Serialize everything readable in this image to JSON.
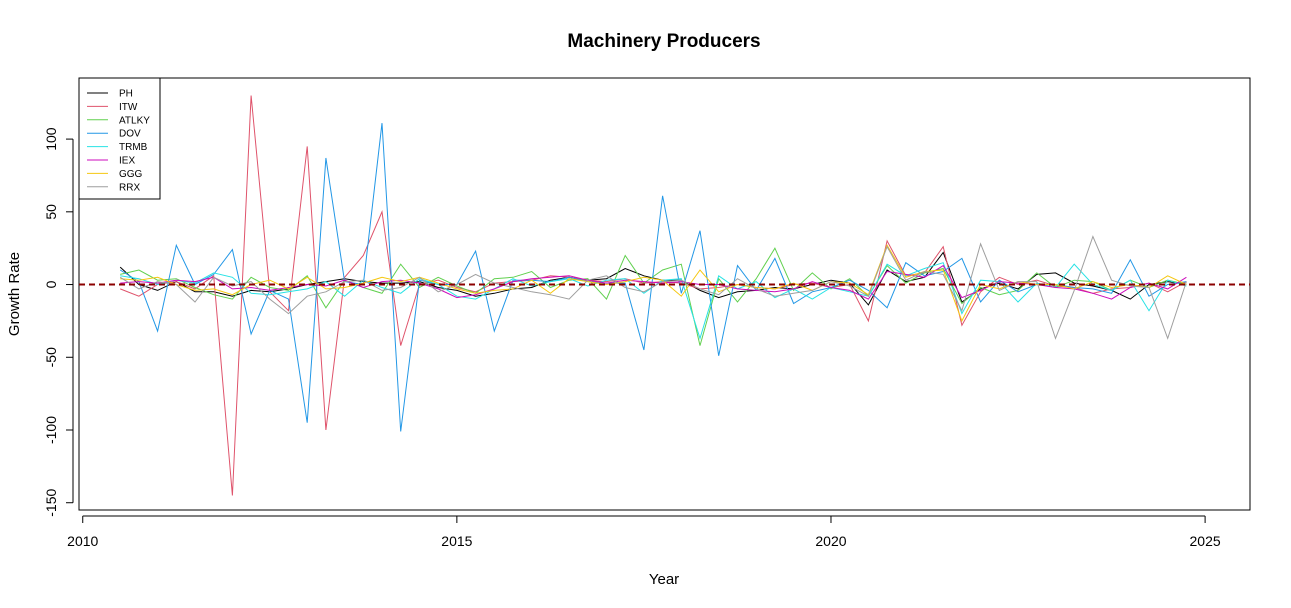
{
  "chart_data": {
    "type": "line",
    "title": "Machinery Producers",
    "xlabel": "Year",
    "ylabel": "Growth Rate",
    "xlim": [
      2009.95,
      2025.6
    ],
    "ylim": [
      -155,
      142
    ],
    "xticks": [
      2010,
      2015,
      2020,
      2025
    ],
    "yticks": [
      -150,
      -100,
      -50,
      0,
      50,
      100
    ],
    "legend_position": "top-left",
    "reference_line": {
      "y": 0,
      "style": "dashed",
      "color": "#8B0000"
    },
    "x": [
      2010.5,
      2010.75,
      2011,
      2011.25,
      2011.5,
      2011.75,
      2012,
      2012.25,
      2012.5,
      2012.75,
      2013,
      2013.25,
      2013.5,
      2013.75,
      2014,
      2014.25,
      2014.5,
      2014.75,
      2015,
      2015.25,
      2015.5,
      2015.75,
      2016,
      2016.25,
      2016.5,
      2016.75,
      2017,
      2017.25,
      2017.5,
      2017.75,
      2018,
      2018.25,
      2018.5,
      2018.75,
      2019,
      2019.25,
      2019.5,
      2019.75,
      2020,
      2020.25,
      2020.5,
      2020.75,
      2021,
      2021.25,
      2021.5,
      2021.75,
      2022,
      2022.25,
      2022.5,
      2022.75,
      2023,
      2023.25,
      2023.5,
      2023.75,
      2024,
      2024.25,
      2024.5,
      2024.75
    ],
    "series": [
      {
        "name": "PH",
        "color": "#000000",
        "values": [
          12,
          0,
          -4,
          2,
          -5,
          -5,
          -8,
          -4,
          -5,
          -3,
          0,
          2,
          4,
          2,
          1,
          1,
          2,
          -2,
          -4,
          -8,
          -6,
          -3,
          -2,
          3,
          5,
          3,
          4,
          11,
          6,
          3,
          3,
          -4,
          -9,
          -5,
          -4,
          -2,
          -3,
          0,
          3,
          1,
          -14,
          10,
          2,
          5,
          22,
          -12,
          -3,
          1,
          -3,
          7,
          8,
          1,
          -1,
          -4,
          -10,
          0,
          2,
          0
        ]
      },
      {
        "name": "ITW",
        "color": "#DF536B",
        "values": [
          -3,
          -8,
          0,
          2,
          -3,
          6,
          -145,
          130,
          -5,
          -18,
          95,
          -100,
          5,
          20,
          50,
          -42,
          0,
          3,
          -2,
          -5,
          1,
          2,
          3,
          6,
          5,
          3,
          2,
          4,
          1,
          2,
          1,
          -3,
          -2,
          0,
          -2,
          -3,
          0,
          1,
          -2,
          0,
          -25,
          30,
          6,
          8,
          26,
          -28,
          -5,
          5,
          0,
          3,
          -1,
          -2,
          -6,
          -3,
          -2,
          1,
          -5,
          2
        ]
      },
      {
        "name": "ATLKY",
        "color": "#61D04F",
        "values": [
          7,
          10,
          3,
          4,
          -2,
          -7,
          -10,
          5,
          -2,
          -4,
          6,
          -16,
          3,
          -2,
          -6,
          14,
          -2,
          5,
          -1,
          -6,
          4,
          5,
          9,
          -2,
          3,
          4,
          -10,
          20,
          1,
          10,
          14,
          -42,
          4,
          -12,
          4,
          25,
          -4,
          8,
          -3,
          4,
          -8,
          13,
          1,
          8,
          11,
          -13,
          -2,
          -7,
          -4,
          8,
          -2,
          3,
          2,
          -4,
          3,
          -2,
          3,
          0
        ]
      },
      {
        "name": "DOV",
        "color": "#2297E6",
        "values": [
          10,
          2,
          -32,
          27,
          0,
          7,
          24,
          -34,
          -4,
          -10,
          -95,
          87,
          2,
          0,
          111,
          -101,
          3,
          0,
          0,
          23,
          -32,
          3,
          3,
          2,
          5,
          2,
          1,
          1,
          -45,
          61,
          -6,
          37,
          -49,
          13,
          -4,
          18,
          -13,
          -5,
          -2,
          3,
          -4,
          -16,
          15,
          6,
          9,
          18,
          -12,
          3,
          -5,
          0,
          0,
          -2,
          -3,
          -6,
          17,
          -8,
          0,
          2
        ]
      },
      {
        "name": "TRMB",
        "color": "#28E2E5",
        "values": [
          6,
          4,
          0,
          3,
          1,
          8,
          5,
          -6,
          -7,
          -5,
          -3,
          2,
          -8,
          3,
          -2,
          -6,
          4,
          0,
          -8,
          -10,
          -3,
          4,
          -1,
          2,
          4,
          -1,
          3,
          4,
          -6,
          3,
          4,
          -37,
          6,
          -3,
          2,
          -9,
          -3,
          -10,
          -2,
          -5,
          -8,
          14,
          6,
          11,
          15,
          -20,
          3,
          2,
          -12,
          1,
          -2,
          14,
          0,
          -4,
          3,
          -18,
          3,
          -1
        ]
      },
      {
        "name": "IEX",
        "color": "#CD0BBC",
        "values": [
          1,
          2,
          1,
          3,
          2,
          5,
          -3,
          -2,
          -4,
          -2,
          0,
          -1,
          3,
          -2,
          2,
          3,
          1,
          -3,
          -9,
          -7,
          -3,
          2,
          4,
          5,
          6,
          3,
          1,
          3,
          2,
          1,
          2,
          0,
          0,
          -3,
          -4,
          -5,
          -3,
          2,
          -2,
          -4,
          -10,
          9,
          7,
          5,
          13,
          -9,
          -4,
          2,
          1,
          0,
          -2,
          -3,
          -6,
          -10,
          -2,
          1,
          -3,
          5
        ]
      },
      {
        "name": "GGG",
        "color": "#F5C710",
        "values": [
          4,
          3,
          5,
          0,
          -4,
          -3,
          -7,
          0,
          3,
          -3,
          5,
          -3,
          -2,
          1,
          5,
          2,
          5,
          1,
          -3,
          -6,
          -4,
          -3,
          3,
          -6,
          4,
          2,
          0,
          2,
          5,
          3,
          -8,
          10,
          -5,
          0,
          -2,
          -3,
          1,
          -4,
          2,
          1,
          -7,
          27,
          5,
          9,
          10,
          -25,
          0,
          -3,
          2,
          0,
          0,
          -3,
          2,
          -2,
          0,
          -2,
          6,
          0
        ]
      },
      {
        "name": "RRX",
        "color": "#9E9E9E",
        "values": [
          5,
          -3,
          2,
          0,
          -12,
          5,
          -1,
          2,
          -10,
          -20,
          -8,
          -5,
          2,
          3,
          -4,
          -2,
          5,
          -5,
          0,
          7,
          1,
          -2,
          -5,
          -7,
          -10,
          3,
          6,
          -2,
          -5,
          2,
          3,
          -3,
          -7,
          4,
          -3,
          -8,
          -6,
          -4,
          2,
          -1,
          -8,
          26,
          3,
          9,
          7,
          -18,
          28,
          -4,
          2,
          2,
          -37,
          -4,
          33,
          3,
          -1,
          -2,
          -37,
          2
        ]
      }
    ]
  }
}
